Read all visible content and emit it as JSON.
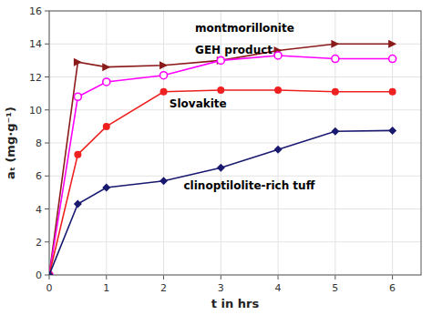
{
  "chart_data": {
    "type": "line",
    "xlabel": "t in hrs",
    "ylabel": "aₜ (mg·g⁻¹)",
    "x": [
      0,
      0.5,
      1,
      2,
      3,
      4,
      5,
      6
    ],
    "series": [
      {
        "name": "montmorillonite",
        "color": "#8B1A1A",
        "marker": "triangle-right",
        "values": [
          0,
          12.9,
          12.6,
          12.7,
          13.0,
          13.6,
          14.0,
          14.0
        ]
      },
      {
        "name": "GEH product",
        "color": "#FF00FF",
        "marker": "open-circle",
        "values": [
          0,
          10.8,
          11.7,
          12.1,
          13.0,
          13.3,
          13.1,
          13.1
        ]
      },
      {
        "name": "Slovakite",
        "color": "#EE2020",
        "marker": "circle",
        "values": [
          0,
          7.3,
          9.0,
          11.1,
          11.2,
          11.2,
          11.1,
          11.1
        ]
      },
      {
        "name": "clinoptilolite-rich tuff",
        "color": "#191970",
        "marker": "diamond",
        "values": [
          0,
          4.3,
          5.3,
          5.7,
          6.5,
          7.6,
          8.7,
          8.75
        ]
      }
    ],
    "xlim": [
      0,
      6.5
    ],
    "ylim": [
      0,
      16
    ],
    "xticks": [
      0,
      1,
      2,
      3,
      4,
      5,
      6
    ],
    "yticks": [
      0,
      2,
      4,
      6,
      8,
      10,
      12,
      14,
      16
    ],
    "grid": true,
    "annotations": [
      {
        "text": "montmorillonite",
        "x": 2.55,
        "y": 14.9
      },
      {
        "text": "GEH product",
        "x": 2.55,
        "y": 13.6
      },
      {
        "text": "Slovakite",
        "x": 2.1,
        "y": 10.35
      },
      {
        "text": "clinoptilolite-rich tuff",
        "x": 2.35,
        "y": 5.4
      }
    ]
  }
}
